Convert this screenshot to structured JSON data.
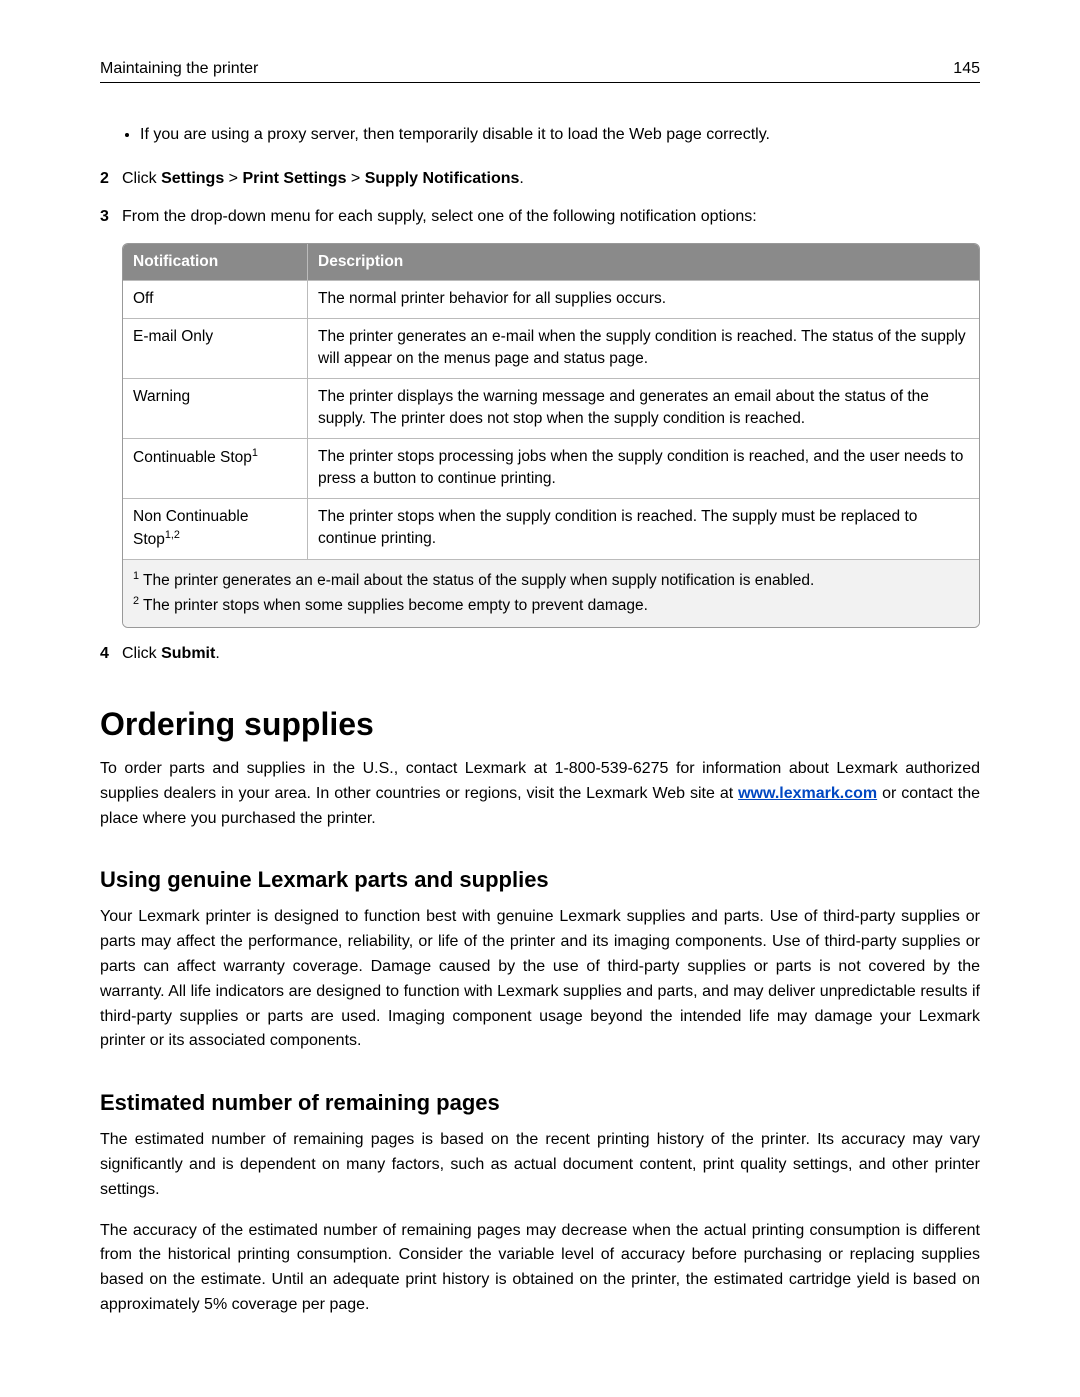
{
  "header": {
    "section": "Maintaining the printer",
    "page_number": "145"
  },
  "bullet": "If you are using a proxy server, then temporarily disable it to load the Web page correctly.",
  "steps": {
    "s2": {
      "num": "2",
      "prefix": "Click ",
      "p1": "Settings",
      "sep": " > ",
      "p2": "Print Settings",
      "p3": "Supply Notifications",
      "suffix": "."
    },
    "s3": {
      "num": "3",
      "text": "From the drop-down menu for each supply, select one of the following notification options:"
    },
    "s4": {
      "num": "4",
      "prefix": "Click ",
      "p1": "Submit",
      "suffix": "."
    }
  },
  "table": {
    "head_col1": "Notification",
    "head_col2": "Description",
    "rows": [
      {
        "n": "Off",
        "d": "The normal printer behavior for all supplies occurs."
      },
      {
        "n": "E-mail Only",
        "d": "The printer generates an e-mail when the supply condition is reached. The status of the supply will appear on the menus page and status page."
      },
      {
        "n": "Warning",
        "d": "The printer displays the warning message and generates an email about the status of the supply. The printer does not stop when the supply condition is reached."
      },
      {
        "n_base": "Continuable Stop",
        "n_sup": "1",
        "d": "The printer stops processing jobs when the supply condition is reached, and the user needs to press a button to continue printing."
      },
      {
        "n_base": "Non Continuable Stop",
        "n_sup": "1,2",
        "d": "The printer stops when the supply condition is reached. The supply must be replaced to continue printing."
      }
    ],
    "foot1_sup": "1",
    "foot1": " The printer generates an e-mail about the status of the supply when supply notification is enabled.",
    "foot2_sup": "2",
    "foot2": " The printer stops when some supplies become empty to prevent damage."
  },
  "ordering": {
    "h1": "Ordering supplies",
    "intro_a": "To order parts and supplies in the U.S., contact Lexmark at 1-800-539-6275 for information about Lexmark authorized supplies dealers in your area. In other countries or regions, visit the Lexmark Web site at ",
    "link": "www.lexmark.com",
    "intro_b": " or contact the place where you purchased the printer."
  },
  "genuine": {
    "h2": "Using genuine Lexmark parts and supplies",
    "p": "Your Lexmark printer is designed to function best with genuine Lexmark supplies and parts. Use of third-party supplies or parts may affect the performance, reliability, or life of the printer and its imaging components. Use of third-party supplies or parts can affect warranty coverage. Damage caused by the use of third-party supplies or parts is not covered by the warranty. All life indicators are designed to function with Lexmark supplies and parts, and may deliver unpredictable results if third-party supplies or parts are used. Imaging component usage beyond the intended life may damage your Lexmark printer or its associated components."
  },
  "remaining": {
    "h2": "Estimated number of remaining pages",
    "p1": "The estimated number of remaining pages is based on the recent printing history of the printer. Its accuracy may vary significantly and is dependent on many factors, such as actual document content, print quality settings, and other printer settings.",
    "p2": "The accuracy of the estimated number of remaining pages may decrease when the actual printing consumption is different from the historical printing consumption. Consider the variable level of accuracy before purchasing or replacing supplies based on the estimate. Until an adequate print history is obtained on the printer, the estimated cartridge yield is based on approximately 5% coverage per page."
  }
}
